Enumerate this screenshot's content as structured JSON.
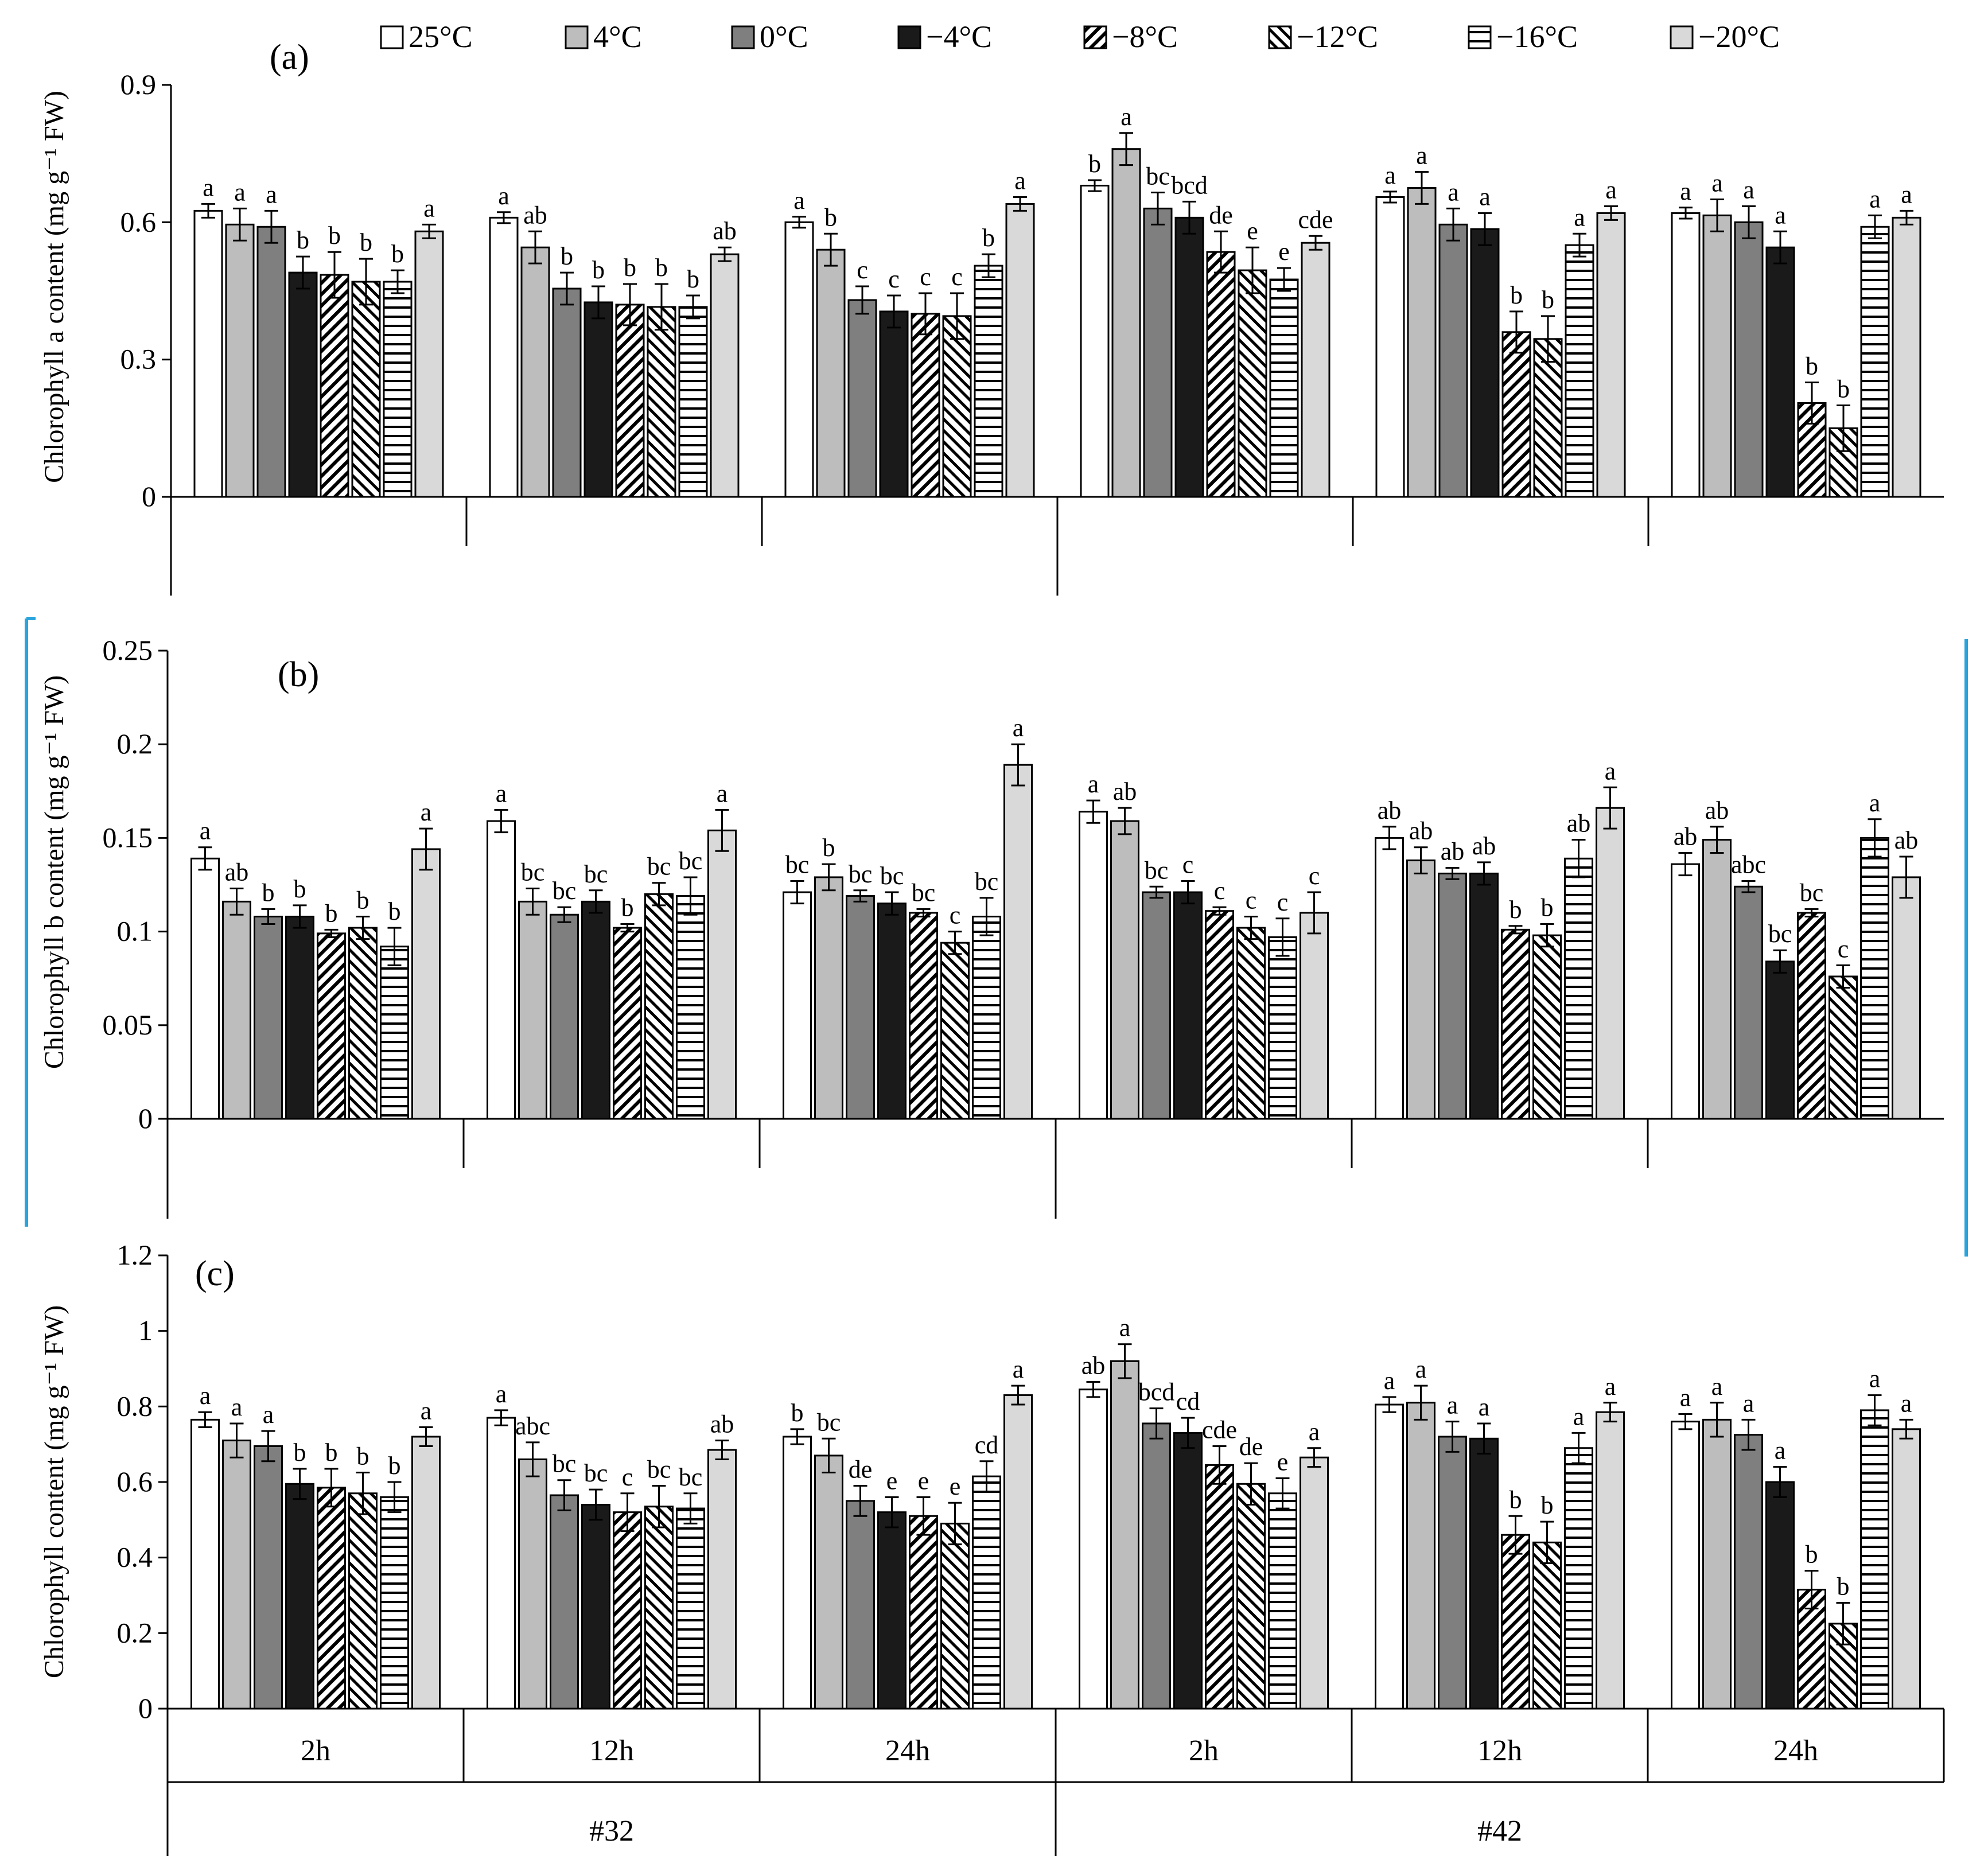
{
  "legend": {
    "series_names": [
      "25°C",
      "4°C",
      "0°C",
      "−4°C",
      "−8°C",
      "−12°C",
      "−16°C",
      "−20°C"
    ]
  },
  "styles": {
    "fills": [
      "#ffffff",
      "#bdbdbd",
      "#7f7f7f",
      "#1a1a1a",
      "hatch-dense",
      "hatch-sparse",
      "hlines",
      "#d9d9d9"
    ],
    "axis_color": "#000000",
    "frame_color": "#29a4dc"
  },
  "chart_data": [
    {
      "type": "bar",
      "panel_label": "(a)",
      "ylabel": "Chlorophyll a content (mg g⁻¹ FW)",
      "ylim": [
        0,
        0.9
      ],
      "yticks": [
        0,
        0.3,
        0.6,
        0.9
      ],
      "ytick_labels": [
        "0",
        "0.3",
        "0.6",
        "0.9"
      ],
      "categories": [
        "2h",
        "12h",
        "24h",
        "2h",
        "12h",
        "24h"
      ],
      "group_labels": [
        "#32",
        "#42"
      ],
      "show_x_labels": false,
      "series": [
        {
          "name": "25°C",
          "values": [
            0.625,
            0.61,
            0.6,
            0.68,
            0.655,
            0.62
          ],
          "errors": [
            0.015,
            0.012,
            0.012,
            0.012,
            0.012,
            0.012
          ],
          "letters": [
            "a",
            "a",
            "a",
            "b",
            "a",
            "a"
          ]
        },
        {
          "name": "4°C",
          "values": [
            0.595,
            0.545,
            0.54,
            0.76,
            0.675,
            0.615
          ],
          "errors": [
            0.035,
            0.035,
            0.035,
            0.035,
            0.035,
            0.035
          ],
          "letters": [
            "a",
            "ab",
            "b",
            "a",
            "a",
            "a"
          ]
        },
        {
          "name": "0°C",
          "values": [
            0.59,
            0.455,
            0.43,
            0.63,
            0.595,
            0.6
          ],
          "errors": [
            0.035,
            0.035,
            0.03,
            0.035,
            0.035,
            0.035
          ],
          "letters": [
            "a",
            "b",
            "c",
            "bc",
            "a",
            "a"
          ]
        },
        {
          "name": "−4°C",
          "values": [
            0.49,
            0.425,
            0.405,
            0.61,
            0.585,
            0.545
          ],
          "errors": [
            0.035,
            0.035,
            0.035,
            0.035,
            0.035,
            0.035
          ],
          "letters": [
            "b",
            "b",
            "c",
            "bcd",
            "a",
            "a"
          ]
        },
        {
          "name": "−8°C",
          "values": [
            0.485,
            0.42,
            0.4,
            0.535,
            0.36,
            0.205
          ],
          "errors": [
            0.05,
            0.045,
            0.045,
            0.045,
            0.045,
            0.045
          ],
          "letters": [
            "b",
            "b",
            "c",
            "de",
            "b",
            "b"
          ]
        },
        {
          "name": "−12°C",
          "values": [
            0.47,
            0.415,
            0.395,
            0.495,
            0.345,
            0.15
          ],
          "errors": [
            0.05,
            0.05,
            0.05,
            0.05,
            0.05,
            0.05
          ],
          "letters": [
            "b",
            "b",
            "c",
            "e",
            "b",
            "b"
          ]
        },
        {
          "name": "−16°C",
          "values": [
            0.47,
            0.415,
            0.505,
            0.475,
            0.55,
            0.59
          ],
          "errors": [
            0.025,
            0.025,
            0.025,
            0.025,
            0.025,
            0.025
          ],
          "letters": [
            "b",
            "b",
            "b",
            "e",
            "a",
            "a"
          ]
        },
        {
          "name": "−20°C",
          "values": [
            0.58,
            0.53,
            0.64,
            0.555,
            0.62,
            0.61
          ],
          "errors": [
            0.015,
            0.015,
            0.015,
            0.015,
            0.015,
            0.015
          ],
          "letters": [
            "a",
            "ab",
            "a",
            "cde",
            "a",
            "a"
          ]
        }
      ]
    },
    {
      "type": "bar",
      "panel_label": "(b)",
      "ylabel": "Chlorophyll b content (mg g⁻¹ FW)",
      "ylim": [
        0,
        0.25
      ],
      "yticks": [
        0,
        0.05,
        0.1,
        0.15,
        0.2,
        0.25
      ],
      "ytick_labels": [
        "0",
        "0.05",
        "0.1",
        "0.15",
        "0.2",
        "0.25"
      ],
      "categories": [
        "2h",
        "12h",
        "24h",
        "2h",
        "12h",
        "24h"
      ],
      "group_labels": [
        "#32",
        "#42"
      ],
      "show_x_labels": false,
      "series": [
        {
          "name": "25°C",
          "values": [
            0.139,
            0.159,
            0.121,
            0.164,
            0.15,
            0.136
          ],
          "errors": [
            0.006,
            0.006,
            0.006,
            0.006,
            0.006,
            0.006
          ],
          "letters": [
            "a",
            "a",
            "bc",
            "a",
            "ab",
            "ab"
          ]
        },
        {
          "name": "4°C",
          "values": [
            0.116,
            0.116,
            0.129,
            0.159,
            0.138,
            0.149
          ],
          "errors": [
            0.007,
            0.007,
            0.007,
            0.007,
            0.007,
            0.007
          ],
          "letters": [
            "ab",
            "bc",
            "b",
            "ab",
            "ab",
            "ab"
          ]
        },
        {
          "name": "0°C",
          "values": [
            0.108,
            0.109,
            0.119,
            0.121,
            0.131,
            0.124
          ],
          "errors": [
            0.004,
            0.004,
            0.003,
            0.003,
            0.003,
            0.003
          ],
          "letters": [
            "b",
            "bc",
            "bc",
            "bc",
            "ab",
            "abc"
          ]
        },
        {
          "name": "−4°C",
          "values": [
            0.108,
            0.116,
            0.115,
            0.121,
            0.131,
            0.084
          ],
          "errors": [
            0.006,
            0.006,
            0.006,
            0.006,
            0.006,
            0.006
          ],
          "letters": [
            "b",
            "bc",
            "bc",
            "c",
            "ab",
            "bc"
          ]
        },
        {
          "name": "−8°C",
          "values": [
            0.099,
            0.102,
            0.11,
            0.111,
            0.101,
            0.11
          ],
          "errors": [
            0.002,
            0.002,
            0.002,
            0.002,
            0.002,
            0.002
          ],
          "letters": [
            "b",
            "b",
            "bc",
            "c",
            "b",
            "bc"
          ]
        },
        {
          "name": "−12°C",
          "values": [
            0.102,
            0.12,
            0.094,
            0.102,
            0.098,
            0.076
          ],
          "errors": [
            0.006,
            0.006,
            0.006,
            0.006,
            0.006,
            0.006
          ],
          "letters": [
            "b",
            "bc",
            "c",
            "c",
            "b",
            "c"
          ]
        },
        {
          "name": "−16°C",
          "values": [
            0.092,
            0.119,
            0.108,
            0.097,
            0.139,
            0.15
          ],
          "errors": [
            0.01,
            0.01,
            0.01,
            0.01,
            0.01,
            0.01
          ],
          "letters": [
            "b",
            "bc",
            "bc",
            "c",
            "ab",
            "a"
          ]
        },
        {
          "name": "−20°C",
          "values": [
            0.144,
            0.154,
            0.189,
            0.11,
            0.166,
            0.129
          ],
          "errors": [
            0.011,
            0.011,
            0.011,
            0.011,
            0.011,
            0.011
          ],
          "letters": [
            "a",
            "a",
            "a",
            "c",
            "a",
            "ab"
          ]
        }
      ]
    },
    {
      "type": "bar",
      "panel_label": "(c)",
      "ylabel": "Chlorophyll content (mg g⁻¹ FW)",
      "ylim": [
        0,
        1.2
      ],
      "yticks": [
        0,
        0.2,
        0.4,
        0.6,
        0.8,
        1,
        1.2
      ],
      "ytick_labels": [
        "0",
        "0.2",
        "0.4",
        "0.6",
        "0.8",
        "1",
        "1.2"
      ],
      "categories": [
        "2h",
        "12h",
        "24h",
        "2h",
        "12h",
        "24h"
      ],
      "group_labels": [
        "#32",
        "#42"
      ],
      "show_x_labels": true,
      "series": [
        {
          "name": "25°C",
          "values": [
            0.765,
            0.77,
            0.72,
            0.845,
            0.805,
            0.76
          ],
          "errors": [
            0.02,
            0.02,
            0.02,
            0.02,
            0.02,
            0.02
          ],
          "letters": [
            "a",
            "a",
            "b",
            "ab",
            "a",
            "a"
          ]
        },
        {
          "name": "4°C",
          "values": [
            0.71,
            0.66,
            0.67,
            0.92,
            0.81,
            0.765
          ],
          "errors": [
            0.045,
            0.045,
            0.045,
            0.045,
            0.045,
            0.045
          ],
          "letters": [
            "a",
            "abc",
            "bc",
            "a",
            "a",
            "a"
          ]
        },
        {
          "name": "0°C",
          "values": [
            0.695,
            0.565,
            0.55,
            0.755,
            0.72,
            0.725
          ],
          "errors": [
            0.04,
            0.04,
            0.04,
            0.04,
            0.04,
            0.04
          ],
          "letters": [
            "a",
            "bc",
            "de",
            "bcd",
            "a",
            "a"
          ]
        },
        {
          "name": "−4°C",
          "values": [
            0.595,
            0.54,
            0.52,
            0.73,
            0.715,
            0.6
          ],
          "errors": [
            0.04,
            0.04,
            0.04,
            0.04,
            0.04,
            0.04
          ],
          "letters": [
            "b",
            "bc",
            "e",
            "cd",
            "a",
            "a"
          ]
        },
        {
          "name": "−8°C",
          "values": [
            0.585,
            0.52,
            0.51,
            0.645,
            0.46,
            0.315
          ],
          "errors": [
            0.05,
            0.05,
            0.05,
            0.05,
            0.05,
            0.05
          ],
          "letters": [
            "b",
            "c",
            "e",
            "cde",
            "b",
            "b"
          ]
        },
        {
          "name": "−12°C",
          "values": [
            0.57,
            0.535,
            0.49,
            0.595,
            0.44,
            0.225
          ],
          "errors": [
            0.055,
            0.055,
            0.055,
            0.055,
            0.055,
            0.055
          ],
          "letters": [
            "b",
            "bc",
            "e",
            "de",
            "b",
            "b"
          ]
        },
        {
          "name": "−16°C",
          "values": [
            0.56,
            0.53,
            0.615,
            0.57,
            0.69,
            0.79
          ],
          "errors": [
            0.04,
            0.04,
            0.04,
            0.04,
            0.04,
            0.04
          ],
          "letters": [
            "b",
            "bc",
            "cd",
            "e",
            "a",
            "a"
          ]
        },
        {
          "name": "−20°C",
          "values": [
            0.72,
            0.685,
            0.83,
            0.665,
            0.785,
            0.74
          ],
          "errors": [
            0.025,
            0.025,
            0.025,
            0.025,
            0.025,
            0.025
          ],
          "letters": [
            "a",
            "ab",
            "a",
            "a",
            "a",
            "a"
          ]
        }
      ]
    }
  ]
}
